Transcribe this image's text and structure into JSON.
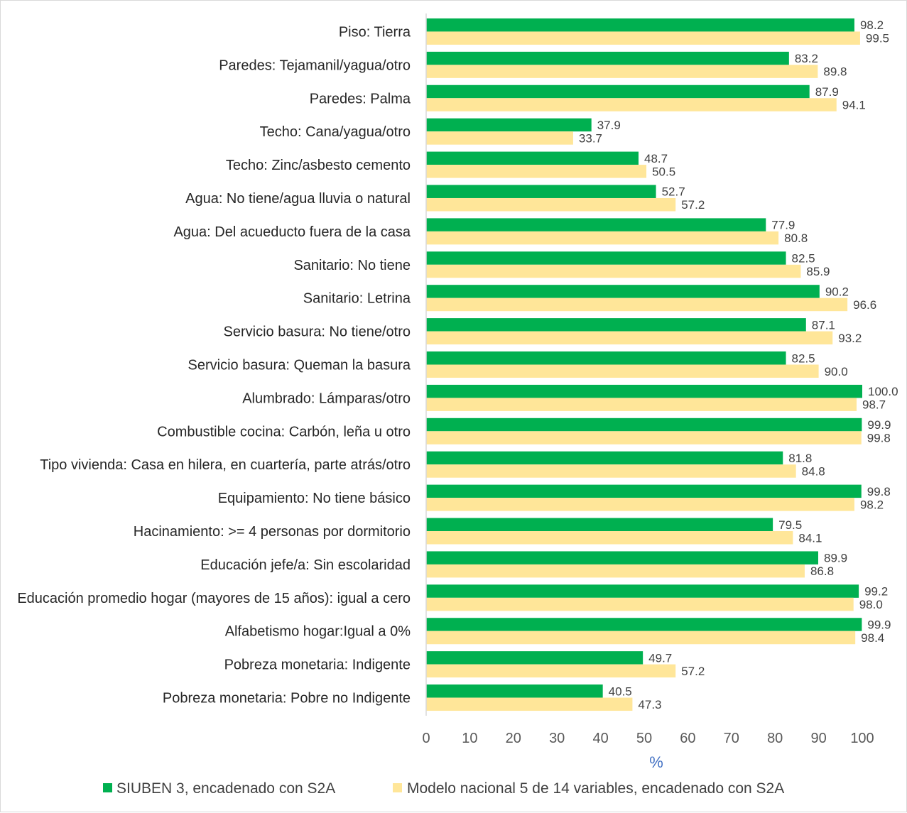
{
  "chart_data": {
    "type": "bar",
    "orientation": "horizontal",
    "title": "",
    "xlabel": "%",
    "ylabel": "",
    "xlim": [
      0,
      100
    ],
    "x_ticks": [
      0,
      10,
      20,
      30,
      40,
      50,
      60,
      70,
      80,
      90,
      100
    ],
    "grid": false,
    "legend_position": "bottom",
    "categories": [
      "Piso: Tierra",
      "Paredes: Tejamanil/yagua/otro",
      "Paredes: Palma",
      "Techo: Cana/yagua/otro",
      "Techo: Zinc/asbesto cemento",
      "Agua: No tiene/agua lluvia o natural",
      "Agua: Del acueducto fuera de la casa",
      "Sanitario: No tiene",
      "Sanitario: Letrina",
      "Servicio basura: No tiene/otro",
      "Servicio basura: Queman la basura",
      "Alumbrado: Lámparas/otro",
      "Combustible cocina: Carbón, leña u otro",
      "Tipo vivienda: Casa en hilera, en cuartería, parte atrás/otro",
      "Equipamiento: No tiene básico",
      "Hacinamiento: >= 4 personas por dormitorio",
      "Educación jefe/a: Sin escolaridad",
      "Educación promedio hogar (mayores de 15 años): igual a cero",
      "Alfabetismo hogar:Igual a 0%",
      "Pobreza monetaria: Indigente",
      "Pobreza monetaria: Pobre no Indigente"
    ],
    "series": [
      {
        "name": "SIUBEN 3, encadenado con S2A",
        "color": "#00b050",
        "values": [
          98.2,
          83.2,
          87.9,
          37.9,
          48.7,
          52.7,
          77.9,
          82.5,
          90.2,
          87.1,
          82.5,
          100.0,
          99.9,
          81.8,
          99.8,
          79.5,
          89.9,
          99.2,
          99.9,
          49.7,
          40.5
        ]
      },
      {
        "name": "Modelo nacional 5 de 14 variables, encadenado con S2A",
        "color": "#ffe699",
        "values": [
          99.5,
          89.8,
          94.1,
          33.7,
          50.5,
          57.2,
          80.8,
          85.9,
          96.6,
          93.2,
          90.0,
          98.7,
          99.8,
          84.8,
          98.2,
          84.1,
          86.8,
          98.0,
          98.4,
          57.2,
          47.3
        ]
      }
    ]
  }
}
